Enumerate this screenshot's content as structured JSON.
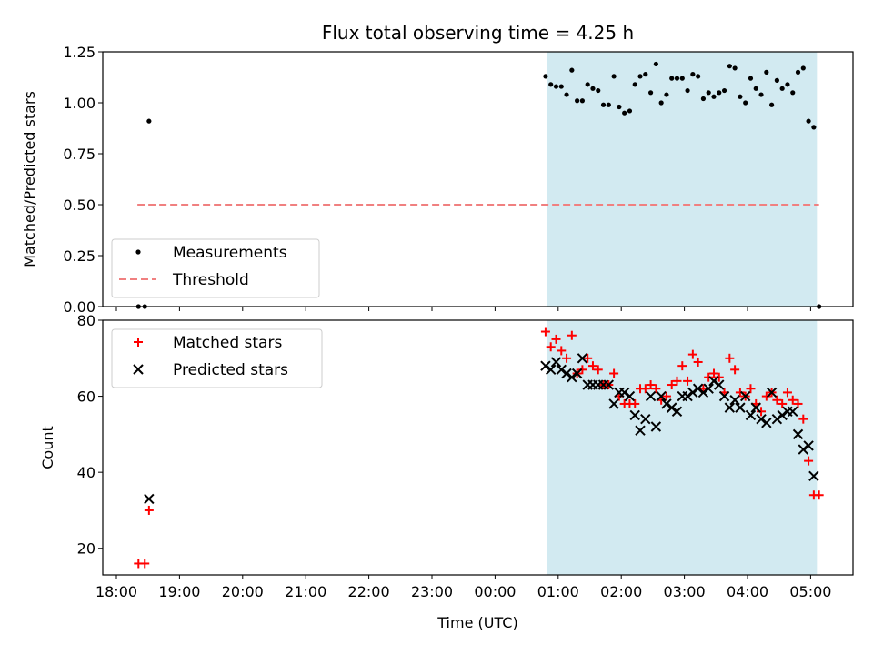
{
  "chart_data": [
    {
      "type": "scatter",
      "title": "Flux total observing time = 4.25 h",
      "xlabel": "",
      "ylabel": "Matched/Predicted stars",
      "ylim": [
        0,
        1.25
      ],
      "yticks": [
        "0.00",
        "0.25",
        "0.50",
        "0.75",
        "1.00",
        "1.25"
      ],
      "grid": false,
      "legend_position": "lower-left",
      "shaded_interval": [
        "00:49",
        "05:06"
      ],
      "shade_color": "#add8e6",
      "series": [
        {
          "name": "Measurements",
          "marker": "dot",
          "color": "#000000",
          "points": [
            [
              "18:21",
              0.0
            ],
            [
              "18:27",
              0.0
            ],
            [
              "18:31",
              0.91
            ],
            [
              "00:48",
              1.13
            ],
            [
              "00:53",
              1.09
            ],
            [
              "00:58",
              1.08
            ],
            [
              "01:03",
              1.08
            ],
            [
              "01:08",
              1.04
            ],
            [
              "01:13",
              1.16
            ],
            [
              "01:18",
              1.01
            ],
            [
              "01:23",
              1.01
            ],
            [
              "01:28",
              1.09
            ],
            [
              "01:33",
              1.07
            ],
            [
              "01:38",
              1.06
            ],
            [
              "01:43",
              0.99
            ],
            [
              "01:48",
              0.99
            ],
            [
              "01:53",
              1.13
            ],
            [
              "01:58",
              0.98
            ],
            [
              "02:03",
              0.95
            ],
            [
              "02:08",
              0.96
            ],
            [
              "02:13",
              1.09
            ],
            [
              "02:18",
              1.13
            ],
            [
              "02:23",
              1.14
            ],
            [
              "02:28",
              1.05
            ],
            [
              "02:33",
              1.19
            ],
            [
              "02:38",
              1.0
            ],
            [
              "02:43",
              1.04
            ],
            [
              "02:48",
              1.12
            ],
            [
              "02:53",
              1.12
            ],
            [
              "02:58",
              1.12
            ],
            [
              "03:03",
              1.06
            ],
            [
              "03:08",
              1.14
            ],
            [
              "03:13",
              1.13
            ],
            [
              "03:18",
              1.02
            ],
            [
              "03:23",
              1.05
            ],
            [
              "03:28",
              1.03
            ],
            [
              "03:33",
              1.05
            ],
            [
              "03:38",
              1.06
            ],
            [
              "03:43",
              1.18
            ],
            [
              "03:48",
              1.17
            ],
            [
              "03:53",
              1.03
            ],
            [
              "03:58",
              1.0
            ],
            [
              "04:03",
              1.12
            ],
            [
              "04:08",
              1.07
            ],
            [
              "04:13",
              1.04
            ],
            [
              "04:18",
              1.15
            ],
            [
              "04:23",
              0.99
            ],
            [
              "04:28",
              1.11
            ],
            [
              "04:33",
              1.07
            ],
            [
              "04:38",
              1.09
            ],
            [
              "04:43",
              1.05
            ],
            [
              "04:48",
              1.15
            ],
            [
              "04:53",
              1.17
            ],
            [
              "04:58",
              0.91
            ],
            [
              "05:03",
              0.88
            ],
            [
              "05:08",
              0.0
            ]
          ]
        },
        {
          "name": "Threshold",
          "marker": "dashed-line",
          "color": "#f08080",
          "points": [
            [
              "18:20",
              0.5
            ],
            [
              "05:08",
              0.5
            ]
          ]
        }
      ]
    },
    {
      "type": "scatter",
      "title": "",
      "xlabel": "Time (UTC)",
      "ylabel": "Count",
      "ylim": [
        13,
        80
      ],
      "yticks": [
        "20",
        "40",
        "60",
        "80"
      ],
      "xticks": [
        "18:00",
        "19:00",
        "20:00",
        "21:00",
        "22:00",
        "23:00",
        "00:00",
        "01:00",
        "02:00",
        "03:00",
        "04:00",
        "05:00"
      ],
      "grid": false,
      "legend_position": "top-left",
      "shaded_interval": [
        "00:49",
        "05:06"
      ],
      "shade_color": "#add8e6",
      "series": [
        {
          "name": "Matched stars",
          "marker": "plus",
          "color": "#ff0000",
          "points": [
            [
              "18:21",
              16
            ],
            [
              "18:27",
              16
            ],
            [
              "18:31",
              30
            ],
            [
              "00:48",
              77
            ],
            [
              "00:53",
              73
            ],
            [
              "00:58",
              75
            ],
            [
              "01:03",
              72
            ],
            [
              "01:08",
              70
            ],
            [
              "01:13",
              76
            ],
            [
              "01:18",
              66
            ],
            [
              "01:23",
              67
            ],
            [
              "01:28",
              70
            ],
            [
              "01:33",
              68
            ],
            [
              "01:38",
              67
            ],
            [
              "01:43",
              63
            ],
            [
              "01:48",
              63
            ],
            [
              "01:53",
              66
            ],
            [
              "01:58",
              60
            ],
            [
              "02:03",
              58
            ],
            [
              "02:08",
              58
            ],
            [
              "02:13",
              58
            ],
            [
              "02:18",
              62
            ],
            [
              "02:23",
              62
            ],
            [
              "02:28",
              63
            ],
            [
              "02:33",
              62
            ],
            [
              "02:38",
              59
            ],
            [
              "02:43",
              60
            ],
            [
              "02:48",
              63
            ],
            [
              "02:53",
              64
            ],
            [
              "02:58",
              68
            ],
            [
              "03:03",
              64
            ],
            [
              "03:08",
              71
            ],
            [
              "03:13",
              69
            ],
            [
              "03:18",
              62
            ],
            [
              "03:23",
              65
            ],
            [
              "03:28",
              66
            ],
            [
              "03:33",
              65
            ],
            [
              "03:38",
              61
            ],
            [
              "03:43",
              70
            ],
            [
              "03:48",
              67
            ],
            [
              "03:53",
              61
            ],
            [
              "03:58",
              60
            ],
            [
              "04:03",
              62
            ],
            [
              "04:08",
              58
            ],
            [
              "04:13",
              56
            ],
            [
              "04:18",
              60
            ],
            [
              "04:23",
              61
            ],
            [
              "04:28",
              59
            ],
            [
              "04:33",
              58
            ],
            [
              "04:38",
              61
            ],
            [
              "04:43",
              59
            ],
            [
              "04:48",
              58
            ],
            [
              "04:53",
              54
            ],
            [
              "04:58",
              43
            ],
            [
              "05:03",
              34
            ],
            [
              "05:08",
              34
            ]
          ]
        },
        {
          "name": "Predicted stars",
          "marker": "x",
          "color": "#000000",
          "points": [
            [
              "18:31",
              33
            ],
            [
              "00:48",
              68
            ],
            [
              "00:53",
              67
            ],
            [
              "00:58",
              69
            ],
            [
              "01:03",
              67
            ],
            [
              "01:08",
              66
            ],
            [
              "01:13",
              65
            ],
            [
              "01:18",
              66
            ],
            [
              "01:23",
              70
            ],
            [
              "01:28",
              63
            ],
            [
              "01:33",
              63
            ],
            [
              "01:38",
              63
            ],
            [
              "01:43",
              63
            ],
            [
              "01:48",
              63
            ],
            [
              "01:53",
              58
            ],
            [
              "01:58",
              61
            ],
            [
              "02:03",
              61
            ],
            [
              "02:08",
              60
            ],
            [
              "02:13",
              55
            ],
            [
              "02:18",
              51
            ],
            [
              "02:23",
              54
            ],
            [
              "02:28",
              60
            ],
            [
              "02:33",
              52
            ],
            [
              "02:38",
              60
            ],
            [
              "02:43",
              58
            ],
            [
              "02:48",
              57
            ],
            [
              "02:53",
              56
            ],
            [
              "02:58",
              60
            ],
            [
              "03:03",
              60
            ],
            [
              "03:08",
              61
            ],
            [
              "03:13",
              62
            ],
            [
              "03:18",
              61
            ],
            [
              "03:23",
              62
            ],
            [
              "03:28",
              64
            ],
            [
              "03:33",
              63
            ],
            [
              "03:38",
              60
            ],
            [
              "03:43",
              57
            ],
            [
              "03:48",
              59
            ],
            [
              "03:53",
              57
            ],
            [
              "03:58",
              60
            ],
            [
              "04:03",
              55
            ],
            [
              "04:08",
              57
            ],
            [
              "04:13",
              54
            ],
            [
              "04:18",
              53
            ],
            [
              "04:23",
              61
            ],
            [
              "04:28",
              54
            ],
            [
              "04:33",
              55
            ],
            [
              "04:38",
              56
            ],
            [
              "04:43",
              56
            ],
            [
              "04:48",
              50
            ],
            [
              "04:53",
              46
            ],
            [
              "04:58",
              47
            ],
            [
              "05:03",
              39
            ]
          ]
        }
      ]
    }
  ]
}
